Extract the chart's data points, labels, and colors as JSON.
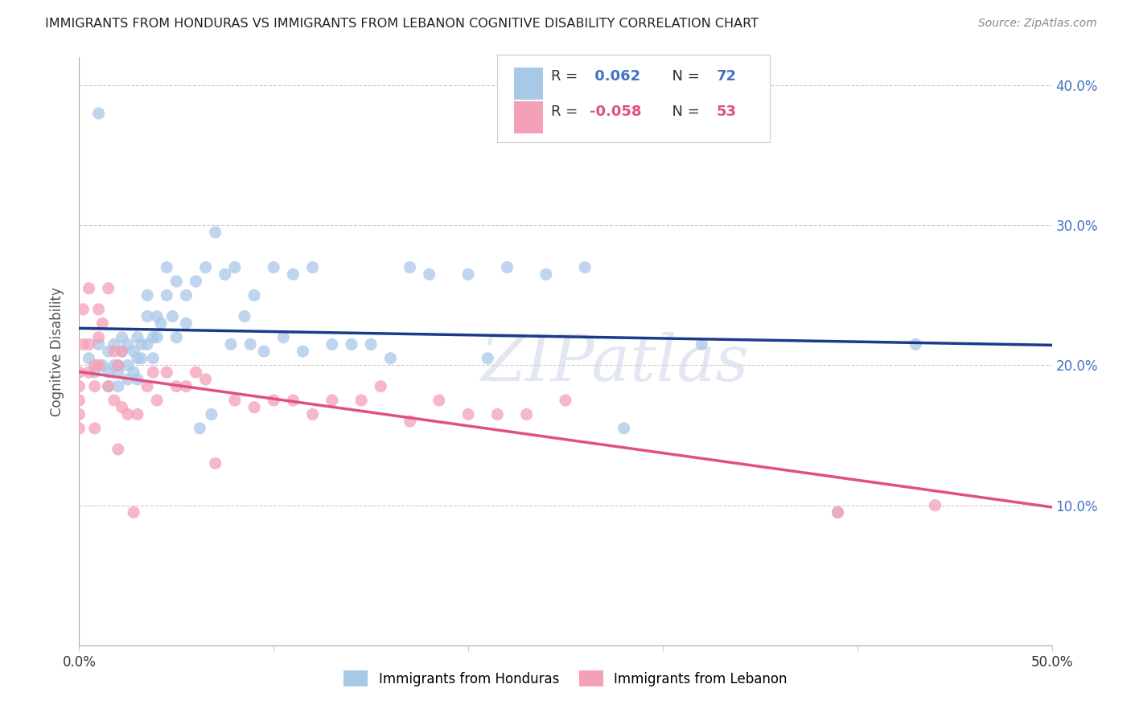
{
  "title": "IMMIGRANTS FROM HONDURAS VS IMMIGRANTS FROM LEBANON COGNITIVE DISABILITY CORRELATION CHART",
  "source": "Source: ZipAtlas.com",
  "ylabel": "Cognitive Disability",
  "xlabel": "",
  "xlim": [
    0.0,
    0.5
  ],
  "ylim": [
    0.0,
    0.42
  ],
  "xticks": [
    0.0,
    0.1,
    0.2,
    0.3,
    0.4,
    0.5
  ],
  "yticks": [
    0.1,
    0.2,
    0.3,
    0.4
  ],
  "legend_r_honduras": "0.062",
  "legend_n_honduras": "72",
  "legend_r_lebanon": "-0.058",
  "legend_n_lebanon": "53",
  "color_honduras": "#a8c8e8",
  "color_lebanon": "#f4a0b8",
  "line_color_honduras": "#1a3a8c",
  "line_color_lebanon": "#e05080",
  "watermark": "ZIPatlas",
  "honduras_x": [
    0.005,
    0.008,
    0.01,
    0.01,
    0.012,
    0.015,
    0.015,
    0.015,
    0.018,
    0.018,
    0.02,
    0.02,
    0.02,
    0.022,
    0.022,
    0.025,
    0.025,
    0.025,
    0.028,
    0.028,
    0.03,
    0.03,
    0.03,
    0.032,
    0.032,
    0.035,
    0.035,
    0.035,
    0.038,
    0.038,
    0.04,
    0.04,
    0.042,
    0.045,
    0.045,
    0.048,
    0.05,
    0.05,
    0.055,
    0.055,
    0.06,
    0.062,
    0.065,
    0.068,
    0.07,
    0.075,
    0.078,
    0.08,
    0.085,
    0.088,
    0.09,
    0.095,
    0.1,
    0.105,
    0.11,
    0.115,
    0.12,
    0.13,
    0.14,
    0.15,
    0.16,
    0.17,
    0.18,
    0.2,
    0.21,
    0.22,
    0.24,
    0.26,
    0.28,
    0.32,
    0.39,
    0.43
  ],
  "honduras_y": [
    0.205,
    0.195,
    0.215,
    0.38,
    0.2,
    0.21,
    0.185,
    0.195,
    0.215,
    0.2,
    0.2,
    0.195,
    0.185,
    0.22,
    0.21,
    0.215,
    0.2,
    0.19,
    0.21,
    0.195,
    0.22,
    0.205,
    0.19,
    0.215,
    0.205,
    0.25,
    0.235,
    0.215,
    0.22,
    0.205,
    0.235,
    0.22,
    0.23,
    0.27,
    0.25,
    0.235,
    0.26,
    0.22,
    0.25,
    0.23,
    0.26,
    0.155,
    0.27,
    0.165,
    0.295,
    0.265,
    0.215,
    0.27,
    0.235,
    0.215,
    0.25,
    0.21,
    0.27,
    0.22,
    0.265,
    0.21,
    0.27,
    0.215,
    0.215,
    0.215,
    0.205,
    0.27,
    0.265,
    0.265,
    0.205,
    0.27,
    0.265,
    0.27,
    0.155,
    0.215,
    0.095,
    0.215
  ],
  "lebanon_x": [
    0.0,
    0.0,
    0.0,
    0.0,
    0.0,
    0.002,
    0.002,
    0.005,
    0.005,
    0.005,
    0.008,
    0.008,
    0.008,
    0.01,
    0.01,
    0.01,
    0.012,
    0.015,
    0.015,
    0.018,
    0.018,
    0.02,
    0.02,
    0.022,
    0.022,
    0.025,
    0.028,
    0.03,
    0.035,
    0.038,
    0.04,
    0.045,
    0.05,
    0.055,
    0.06,
    0.065,
    0.07,
    0.08,
    0.09,
    0.1,
    0.11,
    0.12,
    0.13,
    0.145,
    0.155,
    0.17,
    0.185,
    0.2,
    0.215,
    0.23,
    0.25,
    0.39,
    0.44
  ],
  "lebanon_y": [
    0.195,
    0.185,
    0.175,
    0.165,
    0.155,
    0.24,
    0.215,
    0.255,
    0.215,
    0.195,
    0.2,
    0.185,
    0.155,
    0.24,
    0.22,
    0.2,
    0.23,
    0.255,
    0.185,
    0.21,
    0.175,
    0.2,
    0.14,
    0.21,
    0.17,
    0.165,
    0.095,
    0.165,
    0.185,
    0.195,
    0.175,
    0.195,
    0.185,
    0.185,
    0.195,
    0.19,
    0.13,
    0.175,
    0.17,
    0.175,
    0.175,
    0.165,
    0.175,
    0.175,
    0.185,
    0.16,
    0.175,
    0.165,
    0.165,
    0.165,
    0.175,
    0.095,
    0.1
  ]
}
